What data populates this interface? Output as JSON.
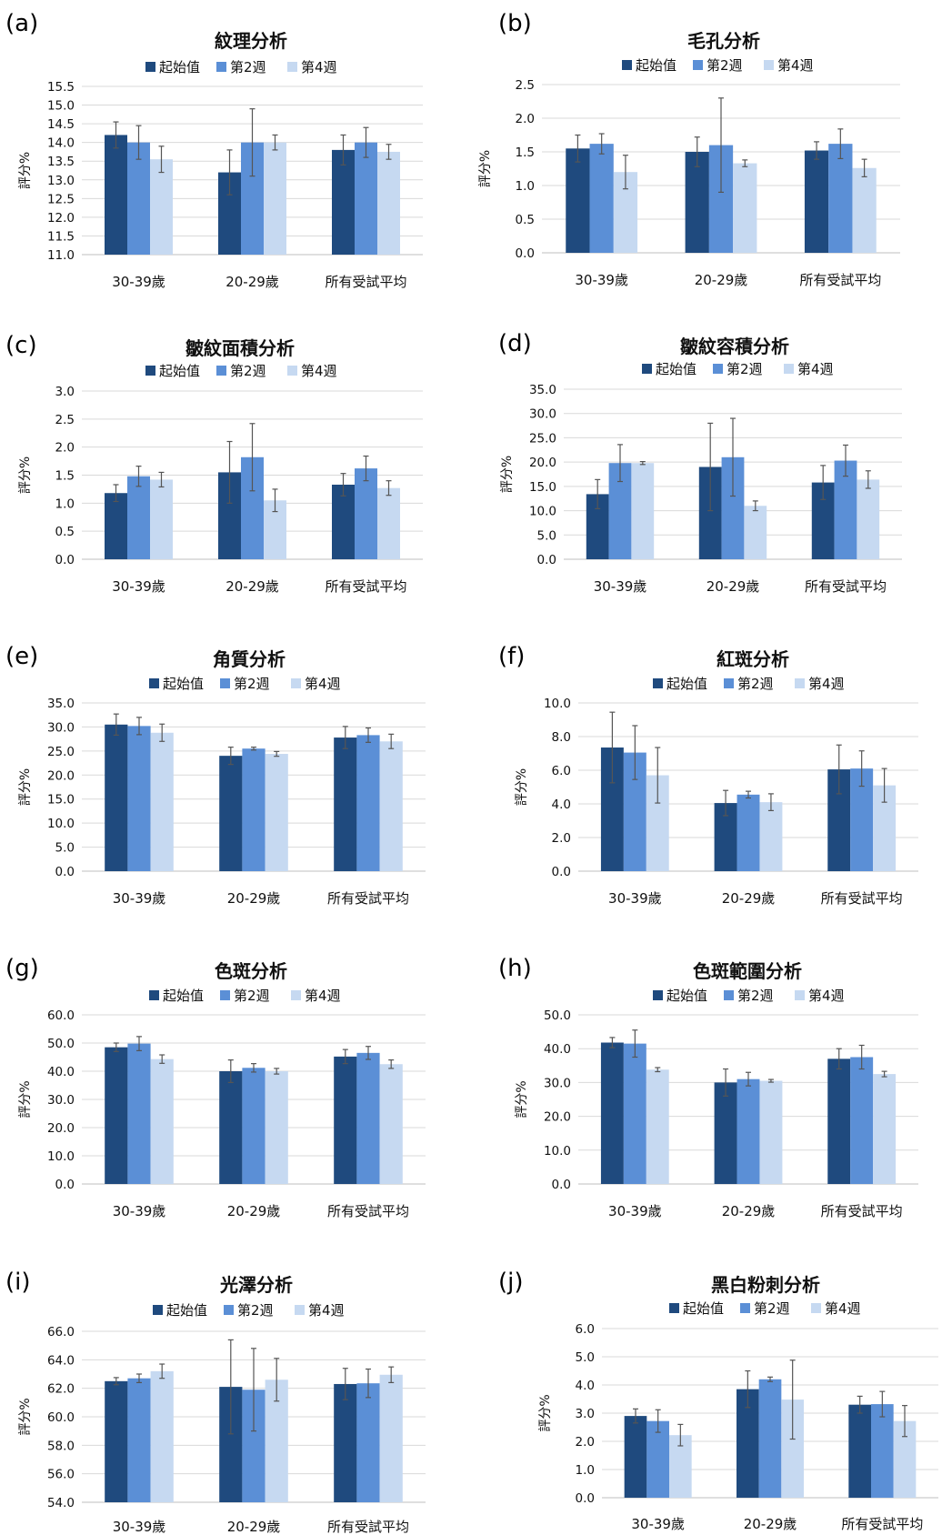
{
  "colors": {
    "baseline": "#1f4a7e",
    "week2": "#5b8fd6",
    "week4": "#c6d9f1",
    "grid": "#d9d9d9",
    "axis": "#bfbfbf",
    "errorbar": "#555555"
  },
  "chart_data": [
    {
      "panel": "(a)",
      "type": "bar",
      "title": "紋理分析",
      "ylabel": "評分%",
      "categories": [
        "30-39歲",
        "20-29歲",
        "所有受試平均"
      ],
      "ylim": [
        11.0,
        15.5
      ],
      "ystep": 0.5,
      "decimals": 1,
      "series": [
        {
          "name": "起始值",
          "values": [
            14.2,
            13.2,
            13.8
          ],
          "errors": [
            0.35,
            0.6,
            0.4
          ]
        },
        {
          "name": "第2週",
          "values": [
            14.0,
            14.0,
            14.0
          ],
          "errors": [
            0.45,
            0.9,
            0.4
          ]
        },
        {
          "name": "第4週",
          "values": [
            13.55,
            14.0,
            13.75
          ],
          "errors": [
            0.35,
            0.2,
            0.2
          ]
        }
      ]
    },
    {
      "panel": "(b)",
      "type": "bar",
      "title": "毛孔分析",
      "ylabel": "評分%",
      "categories": [
        "30-39歲",
        "20-29歲",
        "所有受試平均"
      ],
      "ylim": [
        0.0,
        2.5
      ],
      "ystep": 0.5,
      "decimals": 1,
      "series": [
        {
          "name": "起始值",
          "values": [
            1.55,
            1.5,
            1.52
          ],
          "errors": [
            0.2,
            0.22,
            0.13
          ]
        },
        {
          "name": "第2週",
          "values": [
            1.62,
            1.6,
            1.62
          ],
          "errors": [
            0.15,
            0.7,
            0.22
          ]
        },
        {
          "name": "第4週",
          "values": [
            1.2,
            1.33,
            1.26
          ],
          "errors": [
            0.25,
            0.05,
            0.13
          ]
        }
      ]
    },
    {
      "panel": "(c)",
      "type": "bar",
      "title": "皺紋面積分析",
      "ylabel": "評分%",
      "categories": [
        "30-39歲",
        "20-29歲",
        "所有受試平均"
      ],
      "ylim": [
        0.0,
        3.0
      ],
      "ystep": 0.5,
      "decimals": 1,
      "series": [
        {
          "name": "起始值",
          "values": [
            1.18,
            1.55,
            1.33
          ],
          "errors": [
            0.15,
            0.55,
            0.2
          ]
        },
        {
          "name": "第2週",
          "values": [
            1.48,
            1.82,
            1.62
          ],
          "errors": [
            0.18,
            0.6,
            0.22
          ]
        },
        {
          "name": "第4週",
          "values": [
            1.42,
            1.05,
            1.27
          ],
          "errors": [
            0.13,
            0.2,
            0.13
          ]
        }
      ]
    },
    {
      "panel": "(d)",
      "type": "bar",
      "title": "皺紋容積分析",
      "ylabel": "評分%",
      "categories": [
        "30-39歲",
        "20-29歲",
        "所有受試平均"
      ],
      "ylim": [
        0.0,
        35.0
      ],
      "ystep": 5.0,
      "decimals": 1,
      "series": [
        {
          "name": "起始值",
          "values": [
            13.4,
            19.0,
            15.8
          ],
          "errors": [
            3.0,
            9.0,
            3.5
          ]
        },
        {
          "name": "第2週",
          "values": [
            19.8,
            21.0,
            20.3
          ],
          "errors": [
            3.8,
            8.0,
            3.2
          ]
        },
        {
          "name": "第4週",
          "values": [
            19.8,
            11.0,
            16.4
          ],
          "errors": [
            0.3,
            1.0,
            1.8
          ]
        }
      ]
    },
    {
      "panel": "(e)",
      "type": "bar",
      "title": "角質分析",
      "ylabel": "評分%",
      "categories": [
        "30-39歲",
        "20-29歲",
        "所有受試平均"
      ],
      "ylim": [
        0.0,
        35.0
      ],
      "ystep": 5.0,
      "decimals": 1,
      "series": [
        {
          "name": "起始值",
          "values": [
            30.5,
            24.0,
            27.8
          ],
          "errors": [
            2.2,
            1.8,
            2.3
          ]
        },
        {
          "name": "第2週",
          "values": [
            30.2,
            25.5,
            28.3
          ],
          "errors": [
            1.8,
            0.3,
            1.5
          ]
        },
        {
          "name": "第4週",
          "values": [
            28.8,
            24.4,
            27.0
          ],
          "errors": [
            1.8,
            0.5,
            1.5
          ]
        }
      ]
    },
    {
      "panel": "(f)",
      "type": "bar",
      "title": "紅斑分析",
      "ylabel": "評分%",
      "categories": [
        "30-39歲",
        "20-29歲",
        "所有受試平均"
      ],
      "ylim": [
        0.0,
        10.0
      ],
      "ystep": 2.0,
      "decimals": 1,
      "series": [
        {
          "name": "起始值",
          "values": [
            7.35,
            4.05,
            6.05
          ],
          "errors": [
            2.1,
            0.75,
            1.45
          ]
        },
        {
          "name": "第2週",
          "values": [
            7.05,
            4.55,
            6.1
          ],
          "errors": [
            1.6,
            0.2,
            1.05
          ]
        },
        {
          "name": "第4週",
          "values": [
            5.7,
            4.1,
            5.1
          ],
          "errors": [
            1.65,
            0.5,
            1.0
          ]
        }
      ]
    },
    {
      "panel": "(g)",
      "type": "bar",
      "title": "色斑分析",
      "ylabel": "評分%",
      "categories": [
        "30-39歲",
        "20-29歲",
        "所有受試平均"
      ],
      "ylim": [
        0.0,
        60.0
      ],
      "ystep": 10.0,
      "decimals": 1,
      "series": [
        {
          "name": "起始值",
          "values": [
            48.5,
            40.0,
            45.2
          ],
          "errors": [
            1.5,
            4.0,
            2.5
          ]
        },
        {
          "name": "第2週",
          "values": [
            49.8,
            41.2,
            46.5
          ],
          "errors": [
            2.5,
            1.5,
            2.3
          ]
        },
        {
          "name": "第4週",
          "values": [
            44.3,
            40.0,
            42.5
          ],
          "errors": [
            1.5,
            1.0,
            1.5
          ]
        }
      ]
    },
    {
      "panel": "(h)",
      "type": "bar",
      "title": "色斑範圍分析",
      "ylabel": "評分%",
      "categories": [
        "30-39歲",
        "20-29歲",
        "所有受試平均"
      ],
      "ylim": [
        0.0,
        50.0
      ],
      "ystep": 10.0,
      "decimals": 1,
      "series": [
        {
          "name": "起始值",
          "values": [
            41.8,
            30.0,
            37.0
          ],
          "errors": [
            1.5,
            4.0,
            3.0
          ]
        },
        {
          "name": "第2週",
          "values": [
            41.5,
            31.0,
            37.5
          ],
          "errors": [
            4.0,
            2.0,
            3.5
          ]
        },
        {
          "name": "第4週",
          "values": [
            33.8,
            30.5,
            32.5
          ],
          "errors": [
            0.6,
            0.4,
            0.8
          ]
        }
      ]
    },
    {
      "panel": "(i)",
      "type": "bar",
      "title": "光澤分析",
      "ylabel": "評分%",
      "categories": [
        "30-39歲",
        "20-29歲",
        "所有受試平均"
      ],
      "ylim": [
        54.0,
        66.0
      ],
      "ystep": 2.0,
      "decimals": 1,
      "series": [
        {
          "name": "起始值",
          "values": [
            62.5,
            62.1,
            62.3
          ],
          "errors": [
            0.25,
            3.3,
            1.1
          ]
        },
        {
          "name": "第2週",
          "values": [
            62.7,
            61.9,
            62.35
          ],
          "errors": [
            0.3,
            2.9,
            1.0
          ]
        },
        {
          "name": "第4週",
          "values": [
            63.2,
            62.6,
            62.95
          ],
          "errors": [
            0.5,
            1.5,
            0.55
          ]
        }
      ]
    },
    {
      "panel": "(j)",
      "type": "bar",
      "title": "黑白粉刺分析",
      "ylabel": "評分%",
      "categories": [
        "30-39歲",
        "20-29歲",
        "所有受試平均"
      ],
      "ylim": [
        0.0,
        6.0
      ],
      "ystep": 1.0,
      "decimals": 1,
      "series": [
        {
          "name": "起始值",
          "values": [
            2.9,
            3.85,
            3.3
          ],
          "errors": [
            0.25,
            0.65,
            0.3
          ]
        },
        {
          "name": "第2週",
          "values": [
            2.72,
            4.2,
            3.32
          ],
          "errors": [
            0.4,
            0.08,
            0.45
          ]
        },
        {
          "name": "第4週",
          "values": [
            2.22,
            3.48,
            2.72
          ],
          "errors": [
            0.38,
            1.4,
            0.55
          ]
        }
      ]
    }
  ]
}
